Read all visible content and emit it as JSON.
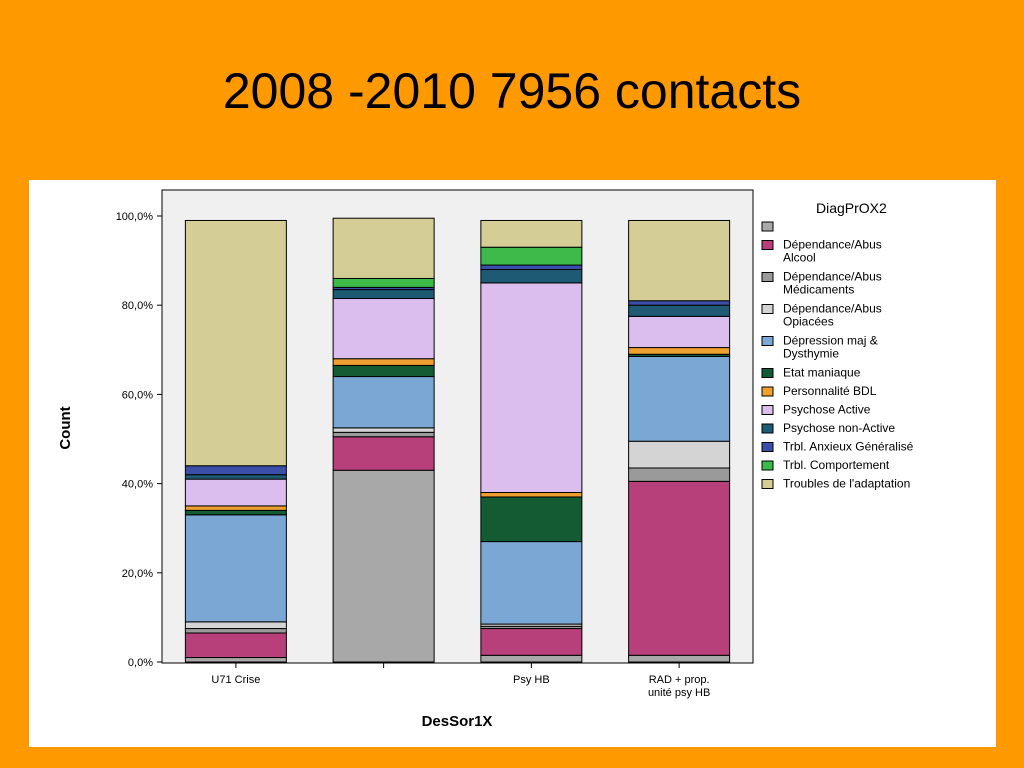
{
  "slide": {
    "title": "2008 -2010  7956 contacts"
  },
  "chart_data": {
    "type": "bar",
    "stacked": true,
    "percent": true,
    "xlabel": "DesSor1X",
    "ylabel": "Count",
    "ylim": [
      0,
      100
    ],
    "yticks": [
      "0,0%",
      "20,0%",
      "40,0%",
      "60,0%",
      "80,0%",
      "100,0%"
    ],
    "grid": false,
    "legend_position": "right",
    "legend_title": "DiagPrOX2",
    "categories": [
      [
        "U71 Crise"
      ],
      [
        ""
      ],
      [
        "Psy HB"
      ],
      [
        "RAD + prop.",
        "unité psy HB"
      ]
    ],
    "series": [
      {
        "name": [
          ""
        ],
        "color": "#A8A8A8",
        "values": [
          1.0,
          43.0,
          1.5,
          1.5
        ]
      },
      {
        "name": [
          "Dépendance/Abus",
          "Alcool"
        ],
        "color": "#B8407A",
        "values": [
          5.5,
          7.5,
          6.0,
          39.0
        ]
      },
      {
        "name": [
          "Dépendance/Abus",
          "Médicaments"
        ],
        "color": "#9A9A9A",
        "values": [
          1.0,
          1.0,
          0.5,
          3.0
        ]
      },
      {
        "name": [
          "Dépendance/Abus",
          "Opiacées"
        ],
        "color": "#D4D4D4",
        "values": [
          1.5,
          1.0,
          0.5,
          6.0
        ]
      },
      {
        "name": [
          "Dépression maj &",
          "Dysthymie"
        ],
        "color": "#7BA7D4",
        "values": [
          24.0,
          11.5,
          18.5,
          19.0
        ]
      },
      {
        "name": [
          "Etat maniaque"
        ],
        "color": "#145A32",
        "values": [
          1.0,
          2.5,
          10.0,
          0.5
        ]
      },
      {
        "name": [
          "Personnalité BDL"
        ],
        "color": "#F0A030",
        "values": [
          1.0,
          1.5,
          1.0,
          1.5
        ]
      },
      {
        "name": [
          "Psychose Active"
        ],
        "color": "#DCBEEE",
        "values": [
          6.0,
          13.5,
          47.0,
          7.0
        ]
      },
      {
        "name": [
          "Psychose non-Active"
        ],
        "color": "#1E5A74",
        "values": [
          1.0,
          2.0,
          3.0,
          2.5
        ]
      },
      {
        "name": [
          "Trbl. Anxieux Généralisé"
        ],
        "color": "#3A4FA8",
        "values": [
          2.0,
          0.5,
          1.0,
          1.0
        ]
      },
      {
        "name": [
          "Trbl. Comportement"
        ],
        "color": "#3DBA4A",
        "values": [
          0.0,
          2.0,
          4.0,
          0.0
        ]
      },
      {
        "name": [
          "Troubles de l'adaptation"
        ],
        "color": "#D4CE96",
        "values": [
          55.0,
          13.5,
          6.0,
          18.0
        ]
      }
    ]
  }
}
